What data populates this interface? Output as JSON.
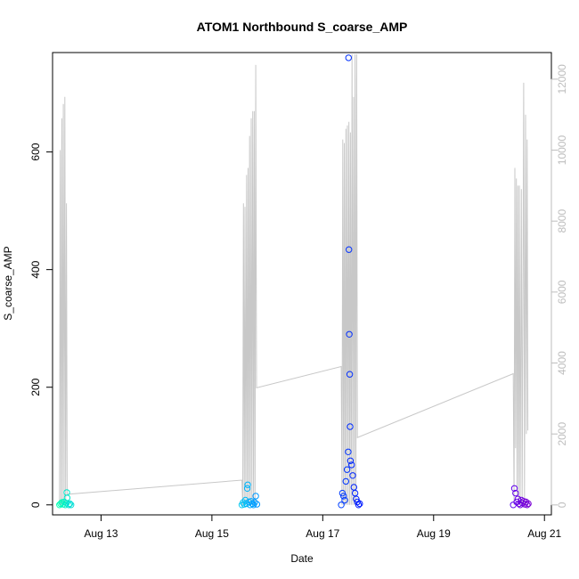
{
  "chart_data": {
    "type": "scatter",
    "title": "ATOM1 Northbound S_coarse_AMP",
    "xlabel": "Date",
    "ylabel": "S_coarse_AMP",
    "x_axis": {
      "type": "date",
      "range": [
        "2022-08-12T03:00",
        "2022-08-21T03:00"
      ],
      "ticks": [
        {
          "value": "2022-08-13",
          "label": "Aug 13"
        },
        {
          "value": "2022-08-15",
          "label": "Aug 15"
        },
        {
          "value": "2022-08-17",
          "label": "Aug 17"
        },
        {
          "value": "2022-08-19",
          "label": "Aug 19"
        },
        {
          "value": "2022-08-21",
          "label": "Aug 21"
        }
      ]
    },
    "y_left": {
      "range": [
        -17,
        769
      ],
      "ticks": [
        0,
        200,
        400,
        600
      ]
    },
    "y_right": {
      "range": [
        -280,
        12750
      ],
      "ticks": [
        0,
        2000,
        4000,
        6000,
        8000,
        10000,
        12000
      ],
      "color": "#bdbdbd"
    },
    "grid": false,
    "line_series": {
      "axis": "right",
      "color": "#c8c8c8",
      "points": [
        [
          "2022-08-12T06:00",
          0
        ],
        [
          "2022-08-12T06:20",
          10000
        ],
        [
          "2022-08-12T06:40",
          0
        ],
        [
          "2022-08-12T07:00",
          10900
        ],
        [
          "2022-08-12T07:20",
          0
        ],
        [
          "2022-08-12T07:40",
          11300
        ],
        [
          "2022-08-12T08:00",
          0
        ],
        [
          "2022-08-12T08:20",
          11500
        ],
        [
          "2022-08-12T08:40",
          0
        ],
        [
          "2022-08-12T09:00",
          8500
        ],
        [
          "2022-08-12T09:20",
          300
        ],
        [
          "2022-08-15T13:00",
          700
        ],
        [
          "2022-08-15T13:20",
          0
        ],
        [
          "2022-08-15T13:40",
          8500
        ],
        [
          "2022-08-15T14:00",
          0
        ],
        [
          "2022-08-15T14:20",
          8400
        ],
        [
          "2022-08-15T14:40",
          0
        ],
        [
          "2022-08-15T15:00",
          9300
        ],
        [
          "2022-08-15T15:20",
          0
        ],
        [
          "2022-08-15T15:40",
          9500
        ],
        [
          "2022-08-15T16:00",
          0
        ],
        [
          "2022-08-15T16:20",
          10400
        ],
        [
          "2022-08-15T16:40",
          0
        ],
        [
          "2022-08-15T17:00",
          10900
        ],
        [
          "2022-08-15T17:20",
          0
        ],
        [
          "2022-08-15T17:40",
          11100
        ],
        [
          "2022-08-15T18:00",
          0
        ],
        [
          "2022-08-15T18:20",
          11100
        ],
        [
          "2022-08-15T18:40",
          0
        ],
        [
          "2022-08-15T19:00",
          12400
        ],
        [
          "2022-08-15T19:20",
          3300
        ],
        [
          "2022-08-17T08:00",
          3900
        ],
        [
          "2022-08-17T08:20",
          0
        ],
        [
          "2022-08-17T08:40",
          10300
        ],
        [
          "2022-08-17T09:00",
          0
        ],
        [
          "2022-08-17T09:20",
          10200
        ],
        [
          "2022-08-17T09:40",
          0
        ],
        [
          "2022-08-17T10:00",
          10600
        ],
        [
          "2022-08-17T10:20",
          0
        ],
        [
          "2022-08-17T10:40",
          10700
        ],
        [
          "2022-08-17T11:00",
          0
        ],
        [
          "2022-08-17T11:20",
          10800
        ],
        [
          "2022-08-17T11:40",
          0
        ],
        [
          "2022-08-17T12:00",
          10500
        ],
        [
          "2022-08-17T12:20",
          0
        ],
        [
          "2022-08-17T12:40",
          12700
        ],
        [
          "2022-08-17T13:00",
          0
        ],
        [
          "2022-08-17T13:20",
          11500
        ],
        [
          "2022-08-17T13:40",
          0
        ],
        [
          "2022-08-17T14:00",
          12700
        ],
        [
          "2022-08-17T14:20",
          0
        ],
        [
          "2022-08-17T14:40",
          12700
        ],
        [
          "2022-08-17T15:00",
          1900
        ],
        [
          "2022-08-20T10:30",
          3700
        ],
        [
          "2022-08-20T10:50",
          0
        ],
        [
          "2022-08-20T11:10",
          9500
        ],
        [
          "2022-08-20T11:30",
          1600
        ],
        [
          "2022-08-20T11:50",
          9200
        ],
        [
          "2022-08-20T12:10",
          300
        ],
        [
          "2022-08-20T12:30",
          9000
        ],
        [
          "2022-08-20T12:50",
          0
        ],
        [
          "2022-08-20T13:10",
          9000
        ],
        [
          "2022-08-20T13:30",
          0
        ],
        [
          "2022-08-20T14:00",
          8900
        ],
        [
          "2022-08-20T14:20",
          0
        ],
        [
          "2022-08-20T15:00",
          11900
        ],
        [
          "2022-08-20T15:20",
          0
        ],
        [
          "2022-08-20T15:50",
          11000
        ],
        [
          "2022-08-20T16:10",
          2000
        ],
        [
          "2022-08-20T16:30",
          10300
        ],
        [
          "2022-08-20T16:50",
          2100
        ]
      ]
    },
    "point_series": {
      "axis": "left",
      "marker": "open-circle",
      "points": [
        [
          "2022-08-12T06:00",
          0,
          "#00ffb0"
        ],
        [
          "2022-08-12T06:30",
          2,
          "#00ffb4"
        ],
        [
          "2022-08-12T07:00",
          4,
          "#00fcb8"
        ],
        [
          "2022-08-12T07:30",
          1,
          "#00f8bc"
        ],
        [
          "2022-08-12T08:00",
          5,
          "#00f4c0"
        ],
        [
          "2022-08-12T08:30",
          0,
          "#00f0c4"
        ],
        [
          "2022-08-12T09:00",
          3,
          "#00ecc8"
        ],
        [
          "2022-08-12T09:10",
          21,
          "#00e8cc"
        ],
        [
          "2022-08-12T09:20",
          12,
          "#00e8cc"
        ],
        [
          "2022-08-12T10:00",
          0,
          "#00e4d0"
        ],
        [
          "2022-08-12T10:30",
          2,
          "#00e0d4"
        ],
        [
          "2022-08-12T11:00",
          0,
          "#00dcd8"
        ],
        [
          "2022-08-15T13:00",
          0,
          "#00c8f0"
        ],
        [
          "2022-08-15T13:30",
          4,
          "#00c4f2"
        ],
        [
          "2022-08-15T14:00",
          1,
          "#00c0f4"
        ],
        [
          "2022-08-15T14:30",
          8,
          "#00bcf6"
        ],
        [
          "2022-08-15T15:00",
          2,
          "#00b8f8"
        ],
        [
          "2022-08-15T15:20",
          28,
          "#00b4fa"
        ],
        [
          "2022-08-15T15:30",
          34,
          "#00b4fa"
        ],
        [
          "2022-08-15T16:00",
          5,
          "#00b0fc"
        ],
        [
          "2022-08-15T16:30",
          0,
          "#00acfe"
        ],
        [
          "2022-08-15T17:00",
          6,
          "#00a8ff"
        ],
        [
          "2022-08-15T17:30",
          2,
          "#00a4ff"
        ],
        [
          "2022-08-15T18:00",
          0,
          "#00a0ff"
        ],
        [
          "2022-08-15T18:30",
          4,
          "#009cff"
        ],
        [
          "2022-08-15T19:00",
          15,
          "#0098ff"
        ],
        [
          "2022-08-15T19:30",
          1,
          "#0094ff"
        ],
        [
          "2022-08-17T08:00",
          0,
          "#0040ff"
        ],
        [
          "2022-08-17T08:30",
          20,
          "#003cff"
        ],
        [
          "2022-08-17T09:00",
          15,
          "#003aff"
        ],
        [
          "2022-08-17T09:30",
          8,
          "#0038ff"
        ],
        [
          "2022-08-17T10:00",
          40,
          "#0036ff"
        ],
        [
          "2022-08-17T10:30",
          60,
          "#0034ff"
        ],
        [
          "2022-08-17T11:00",
          90,
          "#0032ff"
        ],
        [
          "2022-08-17T11:10",
          760,
          "#0030ff"
        ],
        [
          "2022-08-17T11:20",
          434,
          "#0030ff"
        ],
        [
          "2022-08-17T11:30",
          290,
          "#002eff"
        ],
        [
          "2022-08-17T11:40",
          222,
          "#002eff"
        ],
        [
          "2022-08-17T11:50",
          133,
          "#002cff"
        ],
        [
          "2022-08-17T12:00",
          75,
          "#002aff"
        ],
        [
          "2022-08-17T12:30",
          68,
          "#0028ff"
        ],
        [
          "2022-08-17T13:00",
          50,
          "#0026ff"
        ],
        [
          "2022-08-17T13:30",
          30,
          "#0024ff"
        ],
        [
          "2022-08-17T14:00",
          20,
          "#0022ff"
        ],
        [
          "2022-08-17T14:30",
          10,
          "#0020ff"
        ],
        [
          "2022-08-17T15:00",
          5,
          "#001eff"
        ],
        [
          "2022-08-17T15:30",
          0,
          "#001cff"
        ],
        [
          "2022-08-17T16:00",
          2,
          "#001aff"
        ],
        [
          "2022-08-20T10:30",
          0,
          "#5a00f0"
        ],
        [
          "2022-08-20T11:00",
          28,
          "#6200ec"
        ],
        [
          "2022-08-20T11:30",
          20,
          "#6400ea"
        ],
        [
          "2022-08-20T12:00",
          5,
          "#6600e8"
        ],
        [
          "2022-08-20T12:30",
          10,
          "#6800e6"
        ],
        [
          "2022-08-20T13:00",
          2,
          "#6a00e4"
        ],
        [
          "2022-08-20T13:30",
          0,
          "#6c00e2"
        ],
        [
          "2022-08-20T14:00",
          8,
          "#6e00e0"
        ],
        [
          "2022-08-20T14:30",
          3,
          "#7000de"
        ],
        [
          "2022-08-20T15:00",
          6,
          "#7200dc"
        ],
        [
          "2022-08-20T15:30",
          1,
          "#7400da"
        ],
        [
          "2022-08-20T16:00",
          5,
          "#7600d8"
        ],
        [
          "2022-08-20T16:30",
          0,
          "#7800d6"
        ],
        [
          "2022-08-20T17:00",
          2,
          "#7a00d4"
        ]
      ]
    }
  }
}
